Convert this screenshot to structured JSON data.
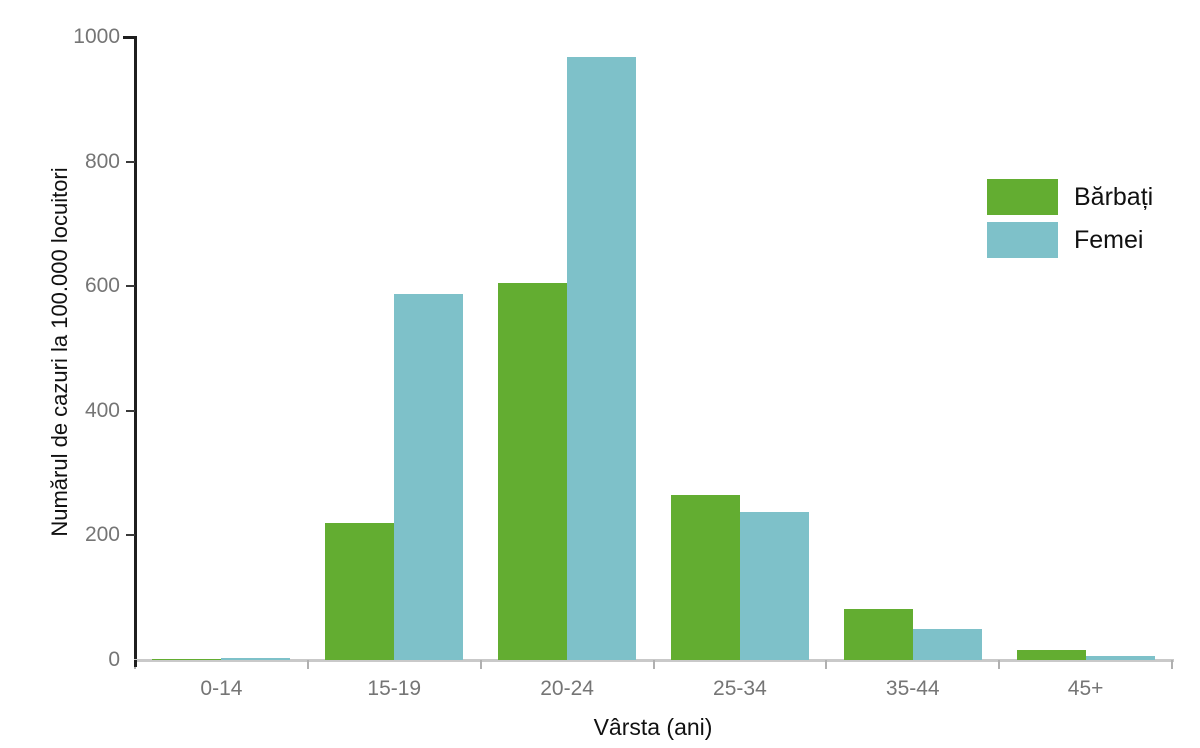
{
  "chart_data": {
    "type": "bar",
    "title": "",
    "categories": [
      "0-14",
      "15-19",
      "20-24",
      "25-34",
      "35-44",
      "45+"
    ],
    "series": [
      {
        "name": "Bărbați",
        "color": "#63ad31",
        "values": [
          1,
          220,
          605,
          265,
          82,
          16
        ]
      },
      {
        "name": "Femei",
        "color": "#7ec1c9",
        "values": [
          3,
          588,
          968,
          238,
          50,
          7
        ]
      }
    ],
    "xlabel": "Vârsta (ani)",
    "ylabel": "Numărul de cazuri la 100.000 locuitori",
    "ylim": [
      0,
      1000
    ],
    "yticks": [
      0,
      200,
      400,
      600,
      800,
      1000
    ],
    "legend_position": "right",
    "grid": false
  }
}
